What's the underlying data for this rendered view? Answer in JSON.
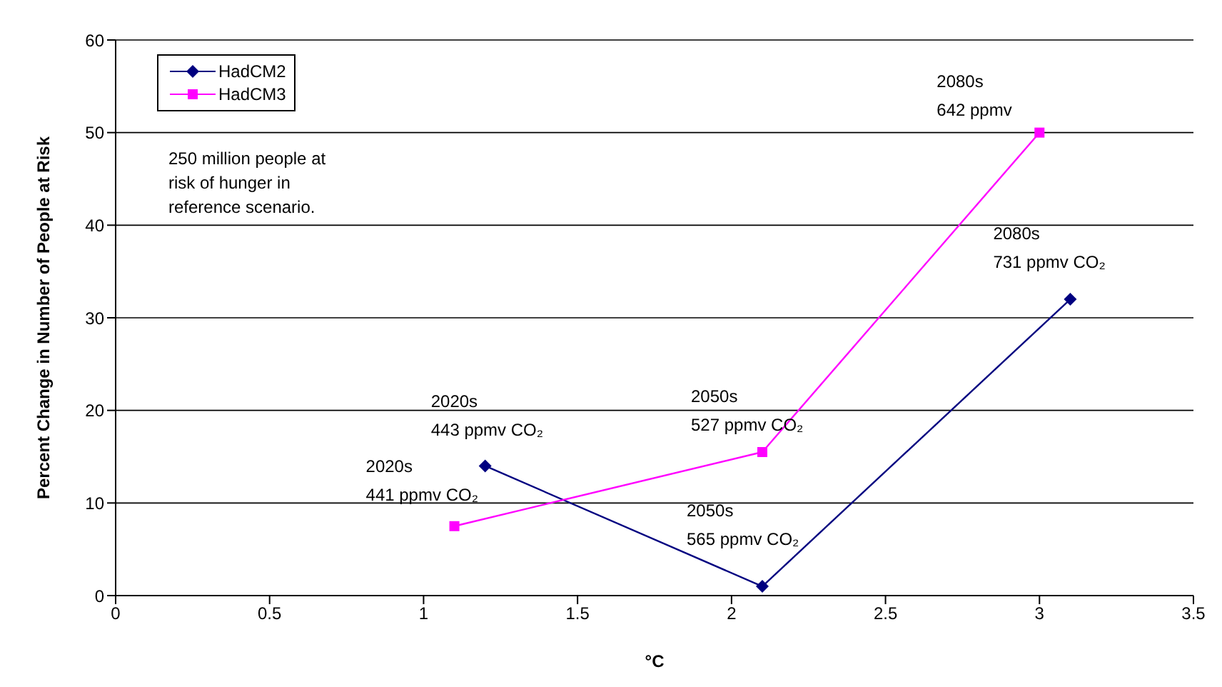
{
  "chart_data": {
    "type": "line",
    "xlabel": "°C",
    "ylabel": "Percent Change in Number of People at Risk",
    "xlim": [
      0,
      3.5
    ],
    "xticks": [
      0,
      0.5,
      1,
      1.5,
      2,
      2.5,
      3,
      3.5
    ],
    "ylim": [
      0,
      60
    ],
    "yticks": [
      0,
      10,
      20,
      30,
      40,
      50,
      60
    ],
    "grid": "y",
    "legend": "top left",
    "series": [
      {
        "name": "HadCM2",
        "color": "#000080",
        "marker": "diamond",
        "x": [
          1.2,
          2.1,
          3.1
        ],
        "values": [
          14,
          1,
          32
        ]
      },
      {
        "name": "HadCM3",
        "color": "#ff00ff",
        "marker": "square",
        "x": [
          1.1,
          2.1,
          3
        ],
        "values": [
          7.5,
          15.5,
          50
        ]
      }
    ],
    "annotations": [
      "250 million people at\nrisk of hunger in\nreference scenario.",
      {
        "text": "2020s\n443 ppmv CO₂",
        "x": 1.2,
        "y": 14
      },
      {
        "text": "2020s\n441 ppmv CO₂",
        "x": 1.1,
        "y": 7.5
      },
      {
        "text": "2050s\n527 ppmv CO₂",
        "x": 2.1,
        "y": 15.5
      },
      {
        "text": "2050s\n565 ppmv CO₂",
        "x": 2.1,
        "y": 1
      },
      {
        "text": "2080s\n642 ppmv",
        "x": 3,
        "y": 50
      },
      {
        "text": "2080s\n731 ppmv CO₂",
        "x": 3.1,
        "y": 32
      }
    ]
  }
}
